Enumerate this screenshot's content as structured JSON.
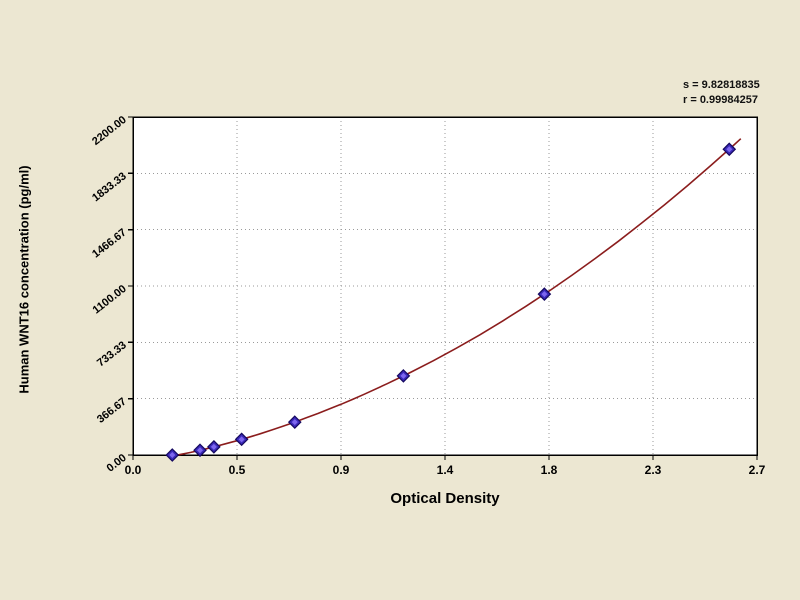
{
  "page": {
    "background_color": "#ece7d2",
    "plot_background_color": "#ffffff"
  },
  "stats": {
    "line1": "s = 9.82818835",
    "line2": "r = 0.99984257"
  },
  "chart_data": {
    "type": "scatter",
    "title": "",
    "xlabel": "Optical Density",
    "ylabel": "Human WNT16 concentration (pg/ml)",
    "xlim": [
      0,
      2.7
    ],
    "ylim": [
      0,
      2200
    ],
    "grid": true,
    "legend_position": "none",
    "x_ticks": [
      0,
      0.45,
      0.9,
      1.35,
      1.8,
      2.25,
      2.7
    ],
    "x_tick_labels": [
      "0.0",
      "0.5",
      "0.9",
      "1.4",
      "1.8",
      "2.3",
      "2.7"
    ],
    "y_ticks": [
      0,
      366.67,
      733.33,
      1100,
      1466.67,
      1833.33,
      2200
    ],
    "y_tick_labels": [
      "0.00",
      "366.67",
      "733.33",
      "1100.00",
      "1466.67",
      "1833.33",
      "2200.00"
    ],
    "annotations": [
      "s = 9.82818835",
      "r = 0.99984257"
    ],
    "series": [
      {
        "name": "standard-points",
        "type": "scatter",
        "marker": "diamond",
        "marker_color": "#3a28b8",
        "marker_edge_color": "#14085e",
        "marker_core_color": "#7d66ee",
        "points": [
          [
            0.17,
            0
          ],
          [
            0.29,
            31
          ],
          [
            0.35,
            53
          ],
          [
            0.47,
            102
          ],
          [
            0.7,
            214
          ],
          [
            1.17,
            515
          ],
          [
            1.78,
            1047
          ],
          [
            2.58,
            1990
          ]
        ]
      },
      {
        "name": "fit-curve",
        "type": "line",
        "color": "#8b1d1d",
        "points": [
          [
            0.16,
            0
          ],
          [
            0.2,
            2
          ],
          [
            0.25,
            17
          ],
          [
            0.3,
            34
          ],
          [
            0.35,
            53
          ],
          [
            0.4,
            73
          ],
          [
            0.45,
            93
          ],
          [
            0.5,
            115
          ],
          [
            0.55,
            138
          ],
          [
            0.6,
            163
          ],
          [
            0.65,
            188
          ],
          [
            0.7,
            214
          ],
          [
            0.75,
            242
          ],
          [
            0.8,
            270
          ],
          [
            0.85,
            300
          ],
          [
            0.9,
            330
          ],
          [
            0.95,
            362
          ],
          [
            1.0,
            395
          ],
          [
            1.1,
            464
          ],
          [
            1.2,
            537
          ],
          [
            1.3,
            614
          ],
          [
            1.4,
            696
          ],
          [
            1.5,
            782
          ],
          [
            1.6,
            873
          ],
          [
            1.7,
            968
          ],
          [
            1.8,
            1067
          ],
          [
            1.9,
            1171
          ],
          [
            2.0,
            1279
          ],
          [
            2.1,
            1391
          ],
          [
            2.2,
            1508
          ],
          [
            2.3,
            1629
          ],
          [
            2.4,
            1754
          ],
          [
            2.5,
            1884
          ],
          [
            2.6,
            2018
          ],
          [
            2.63,
            2059
          ]
        ]
      }
    ],
    "style": {
      "grid_color": "#9a9a9a",
      "axis_color": "#000000",
      "tick_label_color": "#000000"
    }
  }
}
